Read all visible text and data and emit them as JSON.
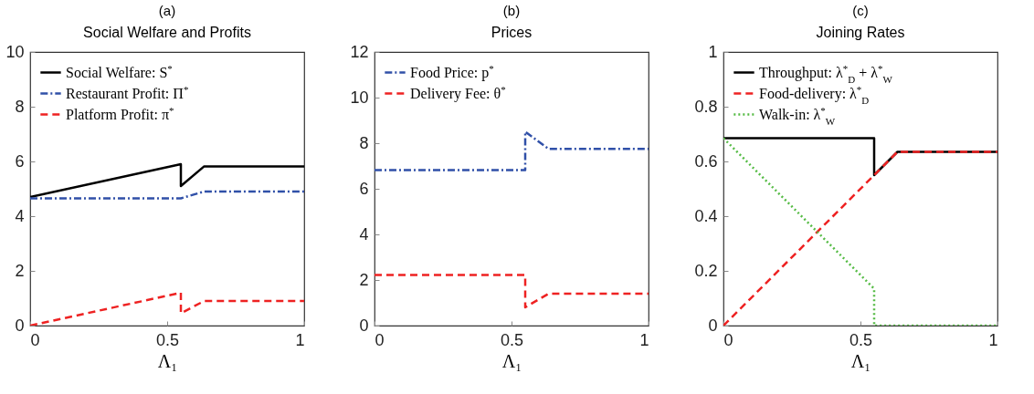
{
  "chart_data": [
    {
      "type": "line",
      "title": "(a)",
      "subtitle": "Social Welfare and Profits",
      "xlabel": "Λ₁",
      "xlim": [
        0,
        1
      ],
      "xticks": [
        0,
        0.5,
        1
      ],
      "ylim": [
        0,
        10
      ],
      "yticks": [
        0,
        2,
        4,
        6,
        8,
        10
      ],
      "grid": false,
      "legend": "top left",
      "marker": "none",
      "series": [
        {
          "name": "Social Welfare: S$^{*}$",
          "color": "#000000",
          "line_style": "solid",
          "x": [
            0,
            0.55,
            0.55,
            0.635,
            1
          ],
          "values": [
            4.7,
            5.9,
            5.1,
            5.82,
            5.82
          ]
        },
        {
          "name": "Restaurant Profit: Π$^{*}$",
          "color": "#3050a8",
          "line_style": "dashdot",
          "x": [
            0,
            0.55,
            0.635,
            1
          ],
          "values": [
            4.65,
            4.65,
            4.9,
            4.9
          ]
        },
        {
          "name": "Platform Profit: π$^{*}$",
          "color": "#ee2222",
          "line_style": "dashed",
          "x": [
            0,
            0.55,
            0.55,
            0.635,
            1
          ],
          "values": [
            0,
            1.2,
            0.45,
            0.9,
            0.9
          ]
        }
      ]
    },
    {
      "type": "line",
      "title": "(b)",
      "subtitle": "Prices",
      "xlabel": "Λ₁",
      "xlim": [
        0,
        1
      ],
      "xticks": [
        0,
        0.5,
        1
      ],
      "ylim": [
        0,
        12
      ],
      "yticks": [
        0,
        2,
        4,
        6,
        8,
        10,
        12
      ],
      "grid": false,
      "legend": "top left",
      "marker": "none",
      "series": [
        {
          "name": "Food Price: p$^{*}$",
          "color": "#3050a8",
          "line_style": "dashdot",
          "x": [
            0,
            0.55,
            0.55,
            0.635,
            1
          ],
          "values": [
            6.82,
            6.82,
            8.5,
            7.75,
            7.75
          ]
        },
        {
          "name": "Delivery Fee: θ$^{*}$",
          "color": "#ee2222",
          "line_style": "dashed",
          "x": [
            0,
            0.55,
            0.55,
            0.635,
            1
          ],
          "values": [
            2.22,
            2.22,
            0.8,
            1.4,
            1.4
          ]
        }
      ]
    },
    {
      "type": "line",
      "title": "(c)",
      "subtitle": "Joining Rates",
      "xlabel": "Λ₁",
      "xlim": [
        0,
        1
      ],
      "xticks": [
        0,
        0.5,
        1
      ],
      "ylim": [
        0,
        1
      ],
      "yticks": [
        0,
        0.2,
        0.4,
        0.6,
        0.8,
        1
      ],
      "grid": false,
      "legend": "top left",
      "marker": "none",
      "series": [
        {
          "name": "Throughput: λ$^{*}$$_{D}$ + λ$^{*}$$_{W}$",
          "color": "#000000",
          "line_style": "solid",
          "x": [
            0,
            0.55,
            0.55,
            0.635,
            1
          ],
          "values": [
            0.685,
            0.685,
            0.55,
            0.635,
            0.635
          ]
        },
        {
          "name": "Food-delivery: λ$^{*}$$_{D}$",
          "color": "#ee2222",
          "line_style": "dashed",
          "x": [
            0,
            0.635,
            1
          ],
          "values": [
            0,
            0.635,
            0.635
          ]
        },
        {
          "name": "Walk-in: λ$^{*}$$_{W}$",
          "color": "#55bb44",
          "line_style": "dotted",
          "x": [
            0,
            0.55,
            0.55,
            1
          ],
          "values": [
            0.685,
            0.135,
            0,
            0
          ]
        }
      ]
    }
  ]
}
